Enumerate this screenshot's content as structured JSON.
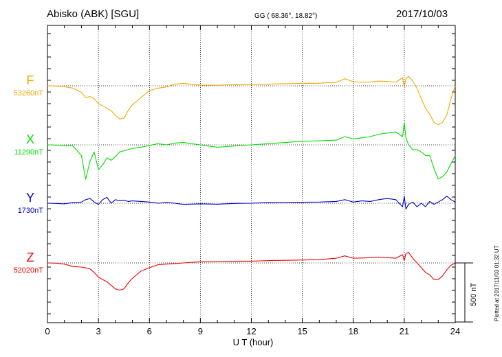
{
  "header": {
    "station": "Abisko (ABK)  [SGU]",
    "coords": "GG ( 68.36°,  18.82°)",
    "date": "2017/10/03"
  },
  "scale_label": "500 nT",
  "plotted_note": "Plotted at 2017/11/03 01:32 UT",
  "chart_data": {
    "type": "line",
    "xlabel": "U T (hour)",
    "xlim": [
      0,
      24
    ],
    "xticks": [
      0,
      3,
      6,
      9,
      12,
      15,
      18,
      21,
      24
    ],
    "xtick_labels": [
      "0",
      "3",
      "6",
      "9",
      "12",
      "15",
      "18",
      "21",
      "24"
    ],
    "scale_bar_nT": 500,
    "grid": true,
    "x": [
      0,
      0.5,
      1,
      1.5,
      2,
      2.25,
      2.5,
      2.75,
      3,
      3.25,
      3.5,
      3.75,
      4,
      4.25,
      4.5,
      4.75,
      5,
      5.5,
      6,
      6.5,
      7,
      7.5,
      8,
      9,
      10,
      11,
      12,
      13,
      14,
      15,
      16,
      17,
      17.5,
      18,
      18.5,
      19,
      19.5,
      20,
      20.5,
      20.9,
      21,
      21.1,
      21.25,
      21.5,
      21.75,
      22,
      22.25,
      22.5,
      22.75,
      23,
      23.25,
      23.5,
      23.75,
      24
    ],
    "series": [
      {
        "name": "F",
        "baseline_label": "53260nT",
        "color": "#f0a800",
        "values": [
          53260,
          53258,
          53252,
          53240,
          53205,
          53160,
          53170,
          53150,
          53110,
          53090,
          53070,
          53050,
          53010,
          52980,
          52985,
          53050,
          53100,
          53160,
          53220,
          53240,
          53250,
          53275,
          53280,
          53265,
          53265,
          53270,
          53270,
          53275,
          53278,
          53280,
          53282,
          53290,
          53320,
          53295,
          53290,
          53292,
          53300,
          53298,
          53290,
          53330,
          53250,
          53320,
          53340,
          53300,
          53240,
          53150,
          53070,
          53020,
          52950,
          52930,
          52950,
          53010,
          53150,
          53260
        ]
      },
      {
        "name": "X",
        "baseline_label": "11290nT",
        "color": "#00dd00",
        "values": [
          11290,
          11288,
          11285,
          11280,
          11200,
          11000,
          11150,
          11230,
          11080,
          11120,
          11180,
          11160,
          11190,
          11230,
          11240,
          11250,
          11260,
          11270,
          11285,
          11300,
          11290,
          11305,
          11310,
          11290,
          11270,
          11280,
          11290,
          11300,
          11310,
          11320,
          11325,
          11330,
          11360,
          11340,
          11350,
          11360,
          11380,
          11390,
          11400,
          11360,
          11480,
          11350,
          11290,
          11250,
          11250,
          11230,
          11200,
          11200,
          11090,
          11000,
          11020,
          11060,
          11130,
          11200
        ]
      },
      {
        "name": "Y",
        "baseline_label": "1730nT",
        "color": "#0000cc",
        "values": [
          1730,
          1728,
          1725,
          1735,
          1740,
          1760,
          1770,
          1740,
          1720,
          1760,
          1780,
          1730,
          1760,
          1750,
          1755,
          1745,
          1750,
          1745,
          1740,
          1730,
          1735,
          1730,
          1720,
          1725,
          1722,
          1728,
          1730,
          1735,
          1735,
          1738,
          1740,
          1745,
          1760,
          1740,
          1750,
          1745,
          1760,
          1770,
          1760,
          1700,
          1790,
          1680,
          1720,
          1740,
          1700,
          1730,
          1700,
          1745,
          1720,
          1740,
          1760,
          1790,
          1760,
          1740
        ]
      },
      {
        "name": "Z",
        "baseline_label": "52020nT",
        "color": "#ee0000",
        "values": [
          52020,
          52018,
          52010,
          51990,
          51985,
          51978,
          51970,
          51940,
          51900,
          51880,
          51860,
          51830,
          51800,
          51790,
          51800,
          51850,
          51890,
          51950,
          51980,
          52005,
          52010,
          52015,
          52020,
          52030,
          52030,
          52035,
          52035,
          52040,
          52042,
          52045,
          52048,
          52060,
          52080,
          52060,
          52062,
          52065,
          52070,
          52065,
          52060,
          52090,
          52040,
          52100,
          52110,
          52060,
          52020,
          51980,
          51940,
          51920,
          51880,
          51880,
          51910,
          51960,
          52000,
          52020
        ]
      }
    ]
  }
}
